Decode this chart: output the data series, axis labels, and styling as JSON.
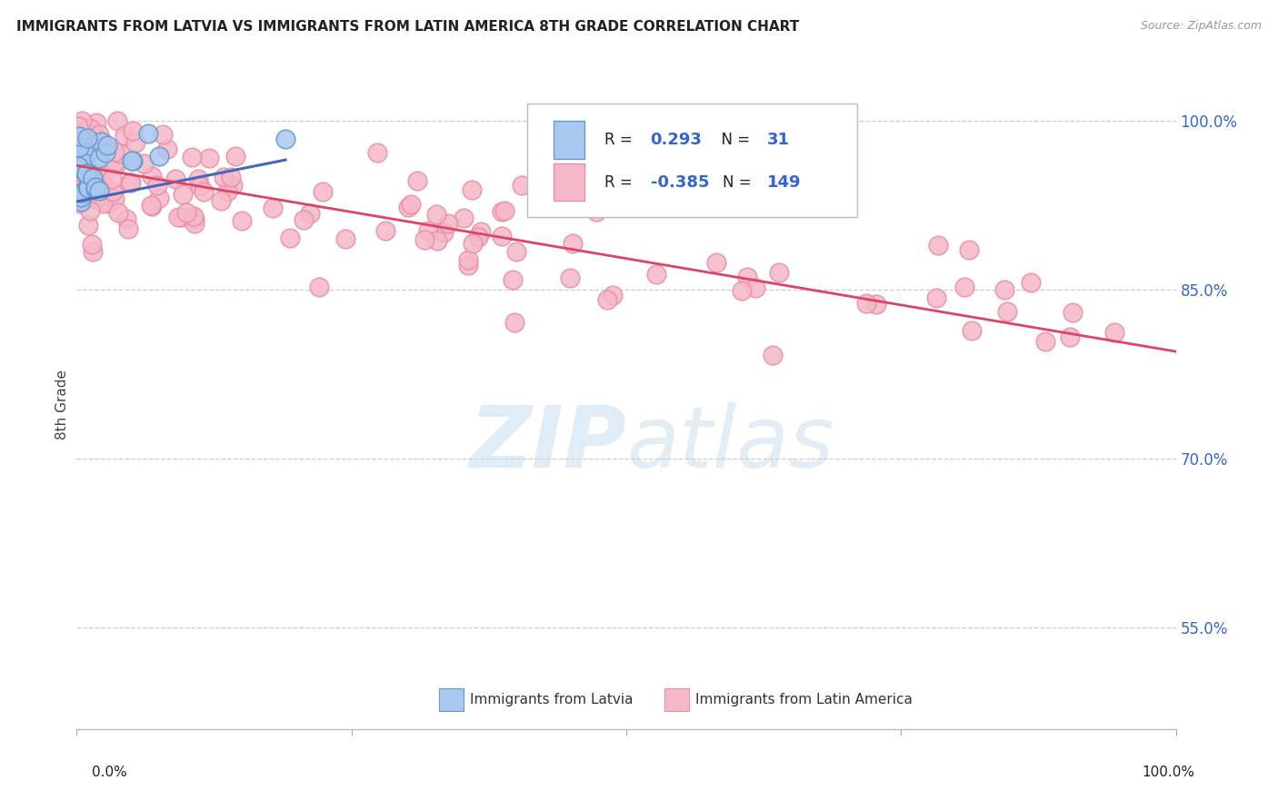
{
  "title": "IMMIGRANTS FROM LATVIA VS IMMIGRANTS FROM LATIN AMERICA 8TH GRADE CORRELATION CHART",
  "source": "Source: ZipAtlas.com",
  "ylabel": "8th Grade",
  "right_ytick_vals": [
    0.55,
    0.7,
    0.85,
    1.0
  ],
  "right_ytick_labels": [
    "55.0%",
    "70.0%",
    "85.0%",
    "100.0%"
  ],
  "xlim": [
    0.0,
    1.0
  ],
  "ylim": [
    0.46,
    1.035
  ],
  "legend_R_blue": "0.293",
  "legend_N_blue": "31",
  "legend_R_pink": "-0.385",
  "legend_N_pink": "149",
  "blue_face_color": "#a8c8f0",
  "blue_edge_color": "#6699cc",
  "pink_face_color": "#f5b8c8",
  "pink_edge_color": "#e890a8",
  "blue_line_color": "#4466bb",
  "pink_line_color": "#dd4466",
  "legend_text_color": "#3366cc",
  "grid_color": "#cccccc",
  "right_axis_color": "#3366cc",
  "watermark_color": "#cce0f0",
  "blue_line_x": [
    0.0,
    0.19
  ],
  "blue_line_y": [
    0.928,
    0.965
  ],
  "pink_line_x": [
    0.0,
    1.0
  ],
  "pink_line_y": [
    0.96,
    0.795
  ]
}
